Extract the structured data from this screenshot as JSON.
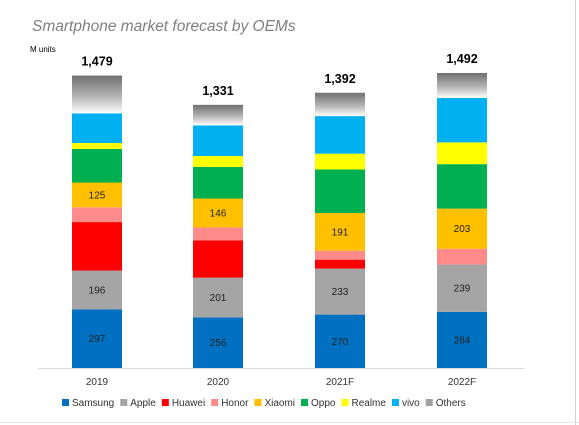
{
  "chart_data": {
    "type": "bar",
    "stacked": true,
    "title": "Smartphone market forecast by OEMs",
    "ylabel": "M units",
    "ylim": [
      0,
      1492
    ],
    "categories": [
      "2019",
      "2020",
      "2021F",
      "2022F"
    ],
    "totals": [
      "1,479",
      "1,331",
      "1,392",
      "1,492"
    ],
    "series": [
      {
        "name": "Samsung",
        "color": "#0070c0",
        "values": [
          297,
          256,
          270,
          284
        ],
        "labels": [
          "297",
          "256",
          "270",
          "284"
        ]
      },
      {
        "name": "Apple",
        "color": "#a5a5a5",
        "values": [
          196,
          201,
          233,
          239
        ],
        "labels": [
          "196",
          "201",
          "233",
          "239"
        ]
      },
      {
        "name": "Huawei",
        "color": "#ff0000",
        "values": [
          245,
          189,
          45,
          0
        ],
        "labels": []
      },
      {
        "name": "Honor",
        "color": "#ff8a8a",
        "values": [
          75,
          65,
          45,
          80
        ],
        "labels": []
      },
      {
        "name": "Xiaomi",
        "color": "#ffc000",
        "values": [
          125,
          146,
          191,
          203
        ],
        "labels": [
          "125",
          "146",
          "191",
          "203"
        ]
      },
      {
        "name": "Oppo",
        "color": "#00b050",
        "values": [
          170,
          160,
          220,
          225
        ],
        "labels": []
      },
      {
        "name": "Realme",
        "color": "#ffff00",
        "values": [
          30,
          55,
          80,
          110
        ],
        "labels": []
      },
      {
        "name": "vivo",
        "color": "#00b0f0",
        "values": [
          150,
          155,
          190,
          225
        ],
        "labels": []
      },
      {
        "name": "Others",
        "color": "#808080",
        "values": [
          191,
          104,
          118,
          126
        ],
        "labels": []
      }
    ],
    "legend_position": "bottom",
    "grid": false
  }
}
